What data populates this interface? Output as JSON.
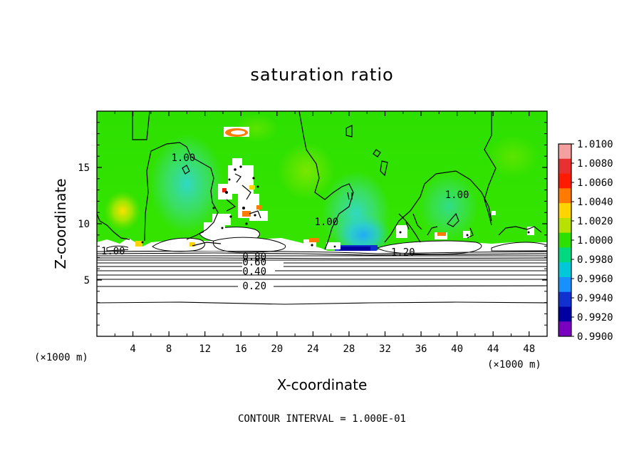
{
  "chart_data": {
    "type": "heatmap",
    "title": "saturation ratio",
    "xlabel": "X-coordinate",
    "ylabel": "Z-coordinate",
    "x_unit_label": "(×1000 m)",
    "x_unit_label_right": "(×1000 m)",
    "xlim": [
      0,
      50
    ],
    "ylim": [
      0,
      20
    ],
    "x_ticks": [
      4,
      8,
      12,
      16,
      20,
      24,
      28,
      32,
      36,
      40,
      44,
      48
    ],
    "y_ticks": [
      5,
      10,
      15
    ],
    "colorbar": {
      "min": 0.99,
      "max": 1.01,
      "labels": [
        "1.0100",
        "1.0080",
        "1.0060",
        "1.0040",
        "1.0020",
        "1.0000",
        "0.9980",
        "0.9960",
        "0.9940",
        "0.9920",
        "0.9900"
      ],
      "colors": [
        "#f4a0a0",
        "#e83030",
        "#ff1a00",
        "#ff7a00",
        "#ffd400",
        "#b8e000",
        "#2ee000",
        "#00d880",
        "#00c8d8",
        "#1890ff",
        "#1030d0",
        "#0000a0",
        "#7a00c0"
      ]
    },
    "contour_labels": [
      {
        "text": "1.00",
        "x": 9.6,
        "z": 15.9
      },
      {
        "text": "1.00",
        "x": 1.8,
        "z": 7.6
      },
      {
        "text": "1.00",
        "x": 25.5,
        "z": 10.2
      },
      {
        "text": "1.00",
        "x": 40.0,
        "z": 12.6
      },
      {
        "text": "1.20",
        "x": 34.0,
        "z": 7.5
      },
      {
        "text": "0.80",
        "x": 17.5,
        "z": 7.1
      },
      {
        "text": "0.60",
        "x": 17.5,
        "z": 6.6
      },
      {
        "text": "0.40",
        "x": 17.5,
        "z": 5.8
      },
      {
        "text": "0.20",
        "x": 17.5,
        "z": 4.5
      }
    ],
    "contour_interval_text": "CONTOUR INTERVAL = 1.000E-01",
    "grid": false,
    "legend": "right"
  }
}
